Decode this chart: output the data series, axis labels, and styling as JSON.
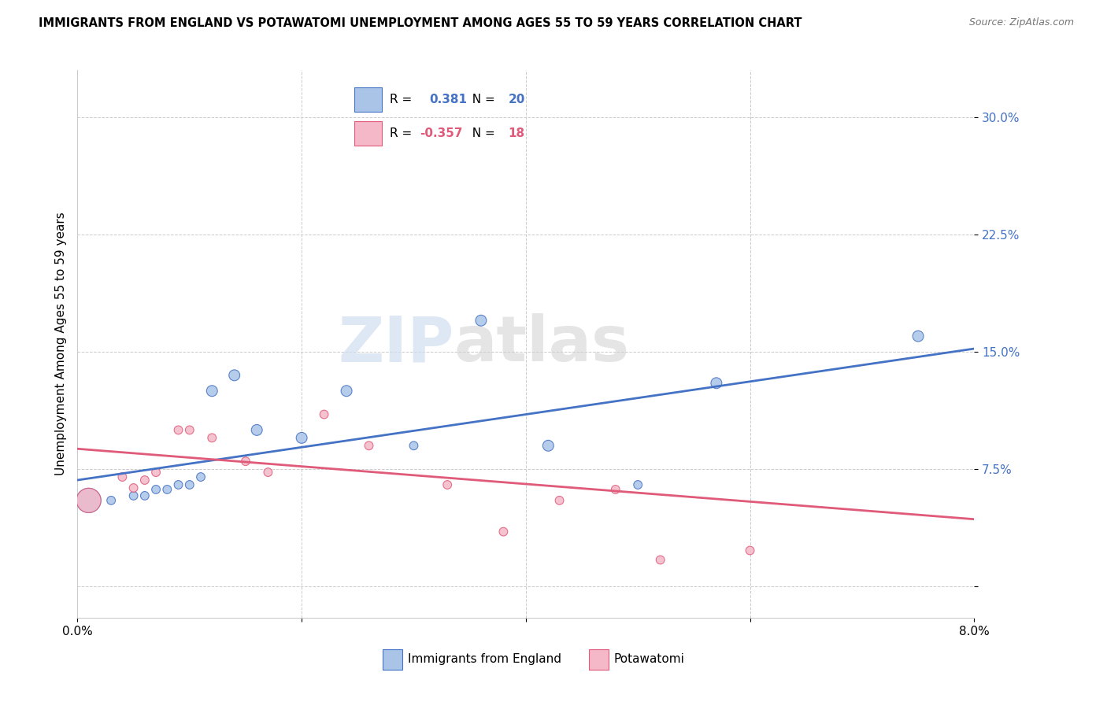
{
  "title": "IMMIGRANTS FROM ENGLAND VS POTAWATOMI UNEMPLOYMENT AMONG AGES 55 TO 59 YEARS CORRELATION CHART",
  "source": "Source: ZipAtlas.com",
  "ylabel": "Unemployment Among Ages 55 to 59 years",
  "y_ticks": [
    0.0,
    0.075,
    0.15,
    0.225,
    0.3
  ],
  "y_tick_labels": [
    "",
    "7.5%",
    "15.0%",
    "22.5%",
    "30.0%"
  ],
  "x_ticks": [
    0.0,
    0.02,
    0.04,
    0.06,
    0.08
  ],
  "x_tick_labels": [
    "0.0%",
    "",
    "",
    "",
    "8.0%"
  ],
  "xlim": [
    0.0,
    0.08
  ],
  "ylim": [
    -0.02,
    0.33
  ],
  "england_color": "#aac4e8",
  "england_color_line": "#4472c4",
  "potawatomi_color": "#f4b8c8",
  "potawatomi_color_line": "#e05a7a",
  "legend_r_england": "0.381",
  "legend_n_england": "20",
  "legend_r_potawatomi": "-0.357",
  "legend_n_potawatomi": "18",
  "england_x": [
    0.001,
    0.003,
    0.005,
    0.006,
    0.007,
    0.008,
    0.009,
    0.01,
    0.011,
    0.012,
    0.014,
    0.016,
    0.02,
    0.024,
    0.03,
    0.036,
    0.042,
    0.05,
    0.057,
    0.075
  ],
  "england_y": [
    0.055,
    0.055,
    0.058,
    0.058,
    0.062,
    0.062,
    0.065,
    0.065,
    0.07,
    0.125,
    0.135,
    0.1,
    0.095,
    0.125,
    0.09,
    0.17,
    0.09,
    0.065,
    0.13,
    0.16
  ],
  "england_size": [
    500,
    60,
    60,
    60,
    60,
    60,
    60,
    60,
    60,
    100,
    100,
    100,
    100,
    100,
    60,
    100,
    100,
    60,
    100,
    100
  ],
  "potawatomi_x": [
    0.001,
    0.004,
    0.005,
    0.006,
    0.007,
    0.009,
    0.01,
    0.012,
    0.015,
    0.017,
    0.022,
    0.026,
    0.033,
    0.038,
    0.043,
    0.048,
    0.052,
    0.06
  ],
  "potawatomi_y": [
    0.055,
    0.07,
    0.063,
    0.068,
    0.073,
    0.1,
    0.1,
    0.095,
    0.08,
    0.073,
    0.11,
    0.09,
    0.065,
    0.035,
    0.055,
    0.062,
    0.017,
    0.023
  ],
  "potawatomi_size": [
    500,
    60,
    60,
    60,
    60,
    60,
    60,
    60,
    60,
    60,
    60,
    60,
    60,
    60,
    60,
    60,
    60,
    60
  ],
  "england_line_x": [
    0.0,
    0.08
  ],
  "england_line_y": [
    0.068,
    0.152
  ],
  "potawatomi_line_x": [
    0.0,
    0.08
  ],
  "potawatomi_line_y": [
    0.088,
    0.043
  ],
  "watermark_zip": "ZIP",
  "watermark_atlas": "atlas",
  "bg_color": "#ffffff",
  "grid_color": "#cccccc"
}
